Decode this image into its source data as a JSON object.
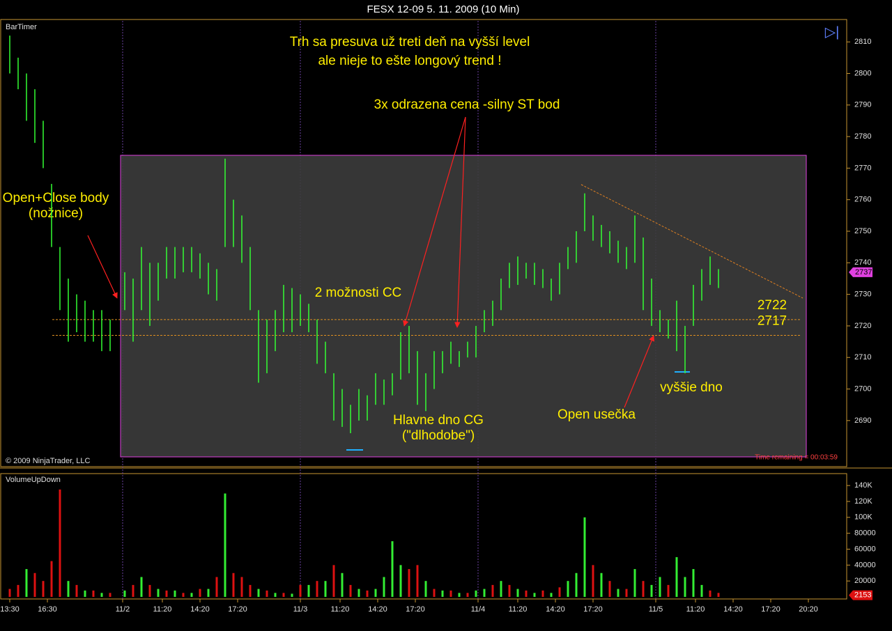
{
  "chart_data": [
    {
      "type": "hilo",
      "title": "FESX 12-09  5. 11. 2009 (10 Min)",
      "indicator": "BarTimer",
      "copyright": "© 2009 NinjaTrader, LLC",
      "time_remaining": "Time remaining = 00:03:59",
      "annotations": [
        "Trh sa presuva už treti deň na vyšší level",
        "ale nieje to ešte longový trend !",
        "3x odrazena cena -silny ST bod",
        "Open+Close body",
        "(nožnice)",
        "2 možnosti CC",
        "Hlavne dno CG",
        "(\"dlhodobe\")",
        "Open usečka",
        "vyššie dno"
      ],
      "hlines": [
        2722,
        2717
      ],
      "last_price": 2737,
      "color": "#33ff33",
      "xlim": [
        0,
        404
      ],
      "ylim": [
        2675.4,
        2817.1
      ],
      "yticks": [
        2690,
        2700,
        2710,
        2720,
        2730,
        2740,
        2750,
        2760,
        2770,
        2780,
        2790,
        2800,
        2810
      ],
      "x": [
        4,
        8,
        12,
        16,
        20,
        24,
        28,
        32,
        36,
        40,
        44,
        48,
        52,
        59,
        63,
        67,
        71,
        75,
        79,
        83,
        87,
        91,
        95,
        99,
        103,
        107,
        111,
        115,
        119,
        123,
        127,
        131,
        135,
        139,
        143,
        147,
        151,
        155,
        159,
        163,
        167,
        171,
        175,
        179,
        183,
        187,
        191,
        195,
        199,
        203,
        207,
        211,
        215,
        219,
        223,
        227,
        231,
        235,
        239,
        243,
        247,
        251,
        255,
        259,
        263,
        267,
        271,
        275,
        279,
        283,
        287,
        291,
        295,
        299,
        303,
        307,
        311,
        315,
        319,
        323,
        327,
        331,
        335,
        339,
        343
      ],
      "high": [
        2812,
        2805,
        2800,
        2795,
        2785,
        2765,
        2745,
        2735,
        2730,
        2728,
        2725,
        2725,
        2722,
        2737,
        2735,
        2745,
        2740,
        2740,
        2745,
        2745,
        2745,
        2745,
        2743,
        2740,
        2738,
        2773,
        2760,
        2755,
        2745,
        2725,
        2722,
        2725,
        2733,
        2732,
        2730,
        2727,
        2722,
        2715,
        2705,
        2700,
        2695,
        2700,
        2698,
        2705,
        2703,
        2705,
        2718,
        2720,
        2712,
        2705,
        2712,
        2712,
        2715,
        2712,
        2715,
        2720,
        2725,
        2728,
        2735,
        2740,
        2742,
        2740,
        2740,
        2738,
        2735,
        2740,
        2745,
        2750,
        2762,
        2755,
        2752,
        2750,
        2747,
        2745,
        2755,
        2748,
        2735,
        2725,
        2722,
        2728,
        2720,
        2733,
        2738,
        2742,
        2738
      ],
      "low": [
        2800,
        2795,
        2785,
        2778,
        2770,
        2745,
        2725,
        2715,
        2718,
        2715,
        2715,
        2712,
        2712,
        2725,
        2715,
        2725,
        2720,
        2728,
        2735,
        2735,
        2737,
        2737,
        2735,
        2730,
        2728,
        2745,
        2745,
        2740,
        2725,
        2702,
        2705,
        2712,
        2718,
        2718,
        2720,
        2718,
        2708,
        2705,
        2690,
        2688,
        2686,
        2690,
        2690,
        2695,
        2695,
        2698,
        2703,
        2705,
        2695,
        2693,
        2700,
        2705,
        2708,
        2707,
        2710,
        2710,
        2718,
        2720,
        2725,
        2732,
        2733,
        2735,
        2733,
        2732,
        2728,
        2730,
        2738,
        2740,
        2750,
        2747,
        2745,
        2743,
        2740,
        2738,
        2740,
        2725,
        2720,
        2718,
        2716,
        2712,
        2705,
        2720,
        2728,
        2733,
        2732
      ]
    },
    {
      "type": "bar",
      "title": "VolumeUpDown",
      "last_value": 2153,
      "xlim": [
        0,
        404
      ],
      "ylim": [
        -2600,
        155000
      ],
      "yticks": [
        20000,
        40000,
        60000,
        80000,
        {
          "value": 100000,
          "label": "100K"
        },
        {
          "value": 120000,
          "label": "120K"
        },
        {
          "value": 140000,
          "label": "140K"
        }
      ],
      "xticks": [
        {
          "value": 4,
          "label": "13:30"
        },
        {
          "value": 22,
          "label": "16:30"
        },
        {
          "value": 58,
          "label": "11/2"
        },
        {
          "value": 77,
          "label": "11:20"
        },
        {
          "value": 95,
          "label": "14:20"
        },
        {
          "value": 113,
          "label": "17:20"
        },
        {
          "value": 143,
          "label": "11/3"
        },
        {
          "value": 162,
          "label": "11:20"
        },
        {
          "value": 180,
          "label": "14:20"
        },
        {
          "value": 198,
          "label": "17:20"
        },
        {
          "value": 228,
          "label": "11/4"
        },
        {
          "value": 247,
          "label": "11:20"
        },
        {
          "value": 265,
          "label": "14:20"
        },
        {
          "value": 283,
          "label": "17:20"
        },
        {
          "value": 313,
          "label": "11/5"
        },
        {
          "value": 332,
          "label": "11:20"
        },
        {
          "value": 350,
          "label": "14:20"
        },
        {
          "value": 368,
          "label": "17:20"
        },
        {
          "value": 386,
          "label": "20:20"
        }
      ],
      "x": [
        4,
        8,
        12,
        16,
        20,
        24,
        28,
        32,
        36,
        40,
        44,
        48,
        52,
        59,
        63,
        67,
        71,
        75,
        79,
        83,
        87,
        91,
        95,
        99,
        103,
        107,
        111,
        115,
        119,
        123,
        127,
        131,
        135,
        139,
        143,
        147,
        151,
        155,
        159,
        163,
        167,
        171,
        175,
        179,
        183,
        187,
        191,
        195,
        199,
        203,
        207,
        211,
        215,
        219,
        223,
        227,
        231,
        235,
        239,
        243,
        247,
        251,
        255,
        259,
        263,
        267,
        271,
        275,
        279,
        283,
        287,
        291,
        295,
        299,
        303,
        307,
        311,
        315,
        319,
        323,
        327,
        331,
        335,
        339,
        343
      ],
      "series": [
        {
          "color": "#33ee33",
          "values": [
            null,
            null,
            35000,
            null,
            null,
            null,
            null,
            20000,
            null,
            8000,
            null,
            5000,
            null,
            8000,
            null,
            25000,
            null,
            10000,
            null,
            8000,
            null,
            5000,
            null,
            10000,
            null,
            130000,
            null,
            null,
            null,
            10000,
            null,
            5000,
            null,
            4000,
            null,
            15000,
            null,
            20000,
            null,
            30000,
            null,
            10000,
            null,
            10000,
            25000,
            70000,
            40000,
            null,
            null,
            20000,
            null,
            8000,
            null,
            5000,
            null,
            8000,
            10000,
            null,
            20000,
            null,
            10000,
            null,
            5000,
            null,
            5000,
            null,
            20000,
            30000,
            100000,
            null,
            30000,
            null,
            10000,
            null,
            35000,
            null,
            15000,
            25000,
            null,
            50000,
            25000,
            35000,
            15000,
            null,
            null
          ]
        },
        {
          "color": "#dd1111",
          "values": [
            10000,
            15000,
            null,
            30000,
            20000,
            45000,
            135000,
            null,
            15000,
            null,
            8000,
            null,
            5000,
            null,
            15000,
            null,
            15000,
            null,
            8000,
            null,
            5000,
            null,
            10000,
            null,
            25000,
            null,
            30000,
            25000,
            15000,
            null,
            8000,
            null,
            5000,
            null,
            15000,
            null,
            20000,
            null,
            40000,
            null,
            15000,
            null,
            8000,
            null,
            null,
            null,
            null,
            35000,
            40000,
            null,
            10000,
            null,
            8000,
            null,
            5000,
            null,
            null,
            15000,
            null,
            15000,
            null,
            8000,
            null,
            8000,
            null,
            12000,
            null,
            null,
            null,
            40000,
            null,
            20000,
            null,
            10000,
            null,
            20000,
            null,
            null,
            15000,
            null,
            null,
            null,
            null,
            8000,
            5000
          ]
        }
      ]
    }
  ]
}
